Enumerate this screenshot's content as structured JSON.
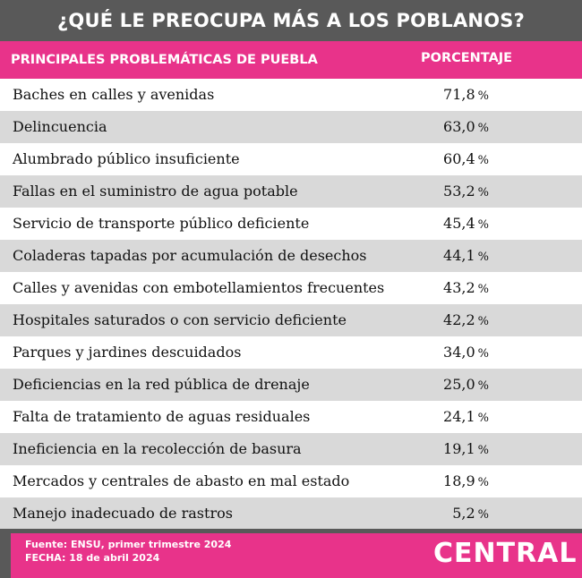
{
  "header": {
    "title": "¿QUÉ LE PREOCUPA MÁS A LOS POBLANOS?"
  },
  "chart_data": {
    "type": "table",
    "title": "¿QUÉ LE PREOCUPA MÁS A LOS POBLANOS?",
    "columns": [
      "PRINCIPALES PROBLEMÁTICAS DE PUEBLA",
      "PORCENTAJE"
    ],
    "unit": "%",
    "rows": [
      {
        "label": "Baches en calles y avenidas",
        "value": "71,8"
      },
      {
        "label": "Delincuencia",
        "value": "63,0"
      },
      {
        "label": "Alumbrado público insuficiente",
        "value": "60,4"
      },
      {
        "label": "Fallas en el suministro de agua potable",
        "value": "53,2"
      },
      {
        "label": "Servicio de transporte público deficiente",
        "value": "45,4"
      },
      {
        "label": "Coladeras tapadas por acumulación de desechos",
        "value": "44,1"
      },
      {
        "label": "Calles y avenidas con embotellamientos frecuentes",
        "value": "43,2"
      },
      {
        "label": "Hospitales saturados o con servicio deficiente",
        "value": "42,2"
      },
      {
        "label": "Parques y jardines descuidados",
        "value": "34,0"
      },
      {
        "label": "Deficiencias en la red pública de drenaje",
        "value": "25,0"
      },
      {
        "label": "Falta de tratamiento de aguas residuales",
        "value": "24,1"
      },
      {
        "label": "Ineficiencia en la recolección de basura",
        "value": "19,1"
      },
      {
        "label": "Mercados y centrales de abasto en mal estado",
        "value": "18,9"
      },
      {
        "label": "Manejo inadecuado de rastros",
        "value": "5,2"
      }
    ]
  },
  "footer": {
    "source": "Fuente: ENSU, primer trimestre 2024",
    "date": "FECHA: 18 de abril 2024",
    "logo": "CENTRAL"
  },
  "colors": {
    "accent": "#e8338a",
    "dark": "#595959",
    "row_alt": "#d9d9d9"
  }
}
